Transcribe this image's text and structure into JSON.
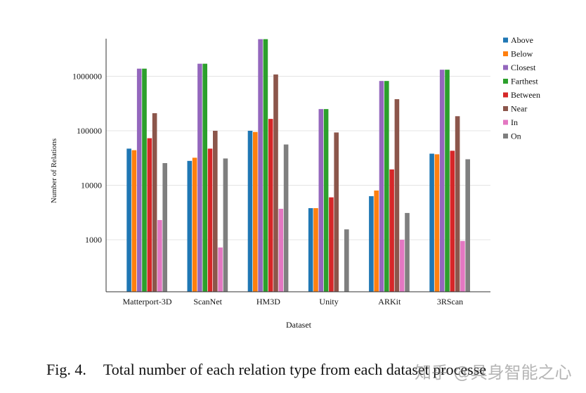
{
  "chart_data": {
    "type": "bar",
    "xlabel": "Dataset",
    "ylabel": "Number of Relations",
    "yscale": "log",
    "ylim": [
      120,
      5000000
    ],
    "yticks": [
      1000,
      10000,
      100000,
      1000000
    ],
    "ytick_labels": [
      "1000",
      "10000",
      "100000",
      "1000000"
    ],
    "grid": true,
    "legend_position": "top-right",
    "categories": [
      "Matterport-3D",
      "ScanNet",
      "HM3D",
      "Unity",
      "ARKit",
      "3RScan"
    ],
    "series": [
      {
        "name": "Above",
        "color": "#1f77b4",
        "values": [
          47000,
          28000,
          100000,
          3800,
          6300,
          38000
        ]
      },
      {
        "name": "Below",
        "color": "#ff7f0e",
        "values": [
          44000,
          32000,
          95000,
          3800,
          8000,
          37000
        ]
      },
      {
        "name": "Closest",
        "color": "#9467bd",
        "values": [
          1380000,
          1700000,
          4800000,
          250000,
          820000,
          1320000
        ]
      },
      {
        "name": "Farthest",
        "color": "#2ca02c",
        "values": [
          1380000,
          1700000,
          4800000,
          250000,
          820000,
          1320000
        ]
      },
      {
        "name": "Between",
        "color": "#d62728",
        "values": [
          73000,
          47000,
          165000,
          6000,
          19500,
          43000
        ]
      },
      {
        "name": "Near",
        "color": "#8c564b",
        "values": [
          210000,
          100000,
          1080000,
          93000,
          380000,
          185000
        ]
      },
      {
        "name": "In",
        "color": "#e377c2",
        "values": [
          2300,
          720,
          3700,
          null,
          1000,
          950
        ]
      },
      {
        "name": "On",
        "color": "#7f7f7f",
        "values": [
          25500,
          31000,
          56000,
          1550,
          3100,
          30000
        ]
      }
    ]
  },
  "caption": {
    "label": "Fig. 4.",
    "text": "Total number of each relation type from each dataset processe"
  },
  "watermark": {
    "text": "知乎 @具身智能之心"
  }
}
